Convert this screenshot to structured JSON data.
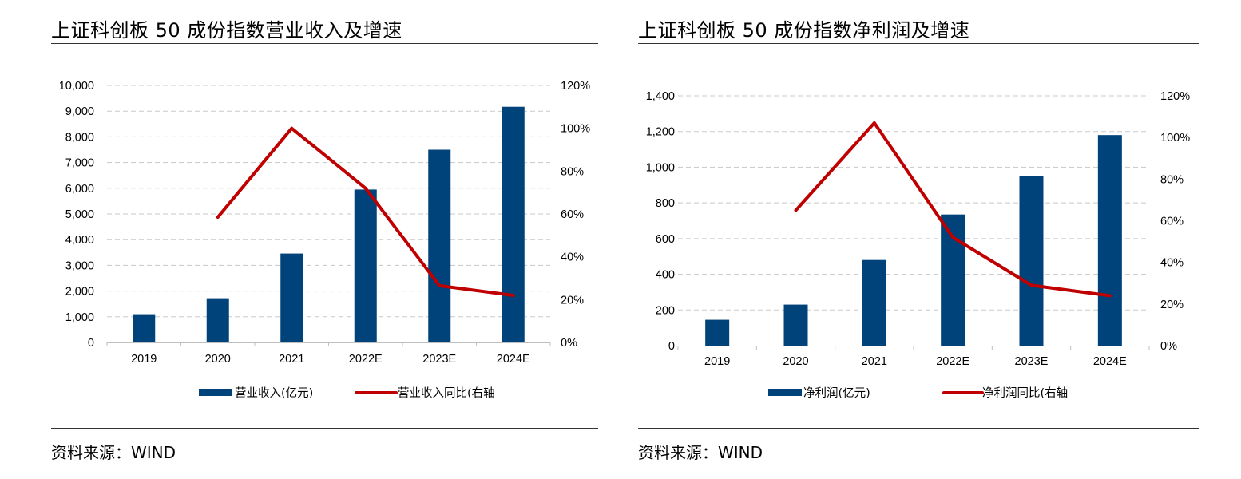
{
  "colors": {
    "bar": "#00427a",
    "line": "#c00000",
    "grid": "#c8c8c8"
  },
  "panels": [
    {
      "title": "上证科创板 50 成份指数营业收入及增速",
      "source": "资料来源：WIND"
    },
    {
      "title": "上证科创板 50 成份指数净利润及增速",
      "source": "资料来源：WIND"
    }
  ],
  "chart_data": [
    {
      "type": "bar+line",
      "categories": [
        "2019",
        "2020",
        "2021",
        "2022E",
        "2023E",
        "2024E"
      ],
      "series": [
        {
          "name": "营业收入(亿元)",
          "type": "bar",
          "axis": "left",
          "values": [
            1100,
            1720,
            3460,
            5950,
            7500,
            9170
          ]
        },
        {
          "name": "营业收入同比(右轴",
          "type": "line",
          "axis": "right",
          "values": [
            null,
            58.5,
            100,
            72,
            26.5,
            22
          ]
        }
      ],
      "y_left": {
        "min": 0,
        "max": 10000,
        "ticks": [
          "0",
          "1,000",
          "2,000",
          "3,000",
          "4,000",
          "5,000",
          "6,000",
          "7,000",
          "8,000",
          "9,000",
          "10,000"
        ]
      },
      "y_right": {
        "min": 0,
        "max": 120,
        "ticks": [
          "0%",
          "20%",
          "40%",
          "60%",
          "80%",
          "100%",
          "120%"
        ]
      },
      "grid": true,
      "legend": "bottom"
    },
    {
      "type": "bar+line",
      "categories": [
        "2019",
        "2020",
        "2021",
        "2022E",
        "2023E",
        "2024E"
      ],
      "series": [
        {
          "name": "净利润(亿元)",
          "type": "bar",
          "axis": "left",
          "values": [
            145,
            230,
            480,
            735,
            950,
            1180
          ]
        },
        {
          "name": "净利润同比(右轴",
          "type": "line",
          "axis": "right",
          "values": [
            null,
            65,
            107,
            52,
            29,
            24
          ]
        }
      ],
      "y_left": {
        "min": 0,
        "max": 1400,
        "ticks": [
          "0",
          "200",
          "400",
          "600",
          "800",
          "1,000",
          "1,200",
          "1,400"
        ]
      },
      "y_right": {
        "min": 0,
        "max": 120,
        "ticks": [
          "0%",
          "20%",
          "40%",
          "60%",
          "80%",
          "100%",
          "120%"
        ]
      },
      "grid": true,
      "legend": "bottom"
    }
  ]
}
